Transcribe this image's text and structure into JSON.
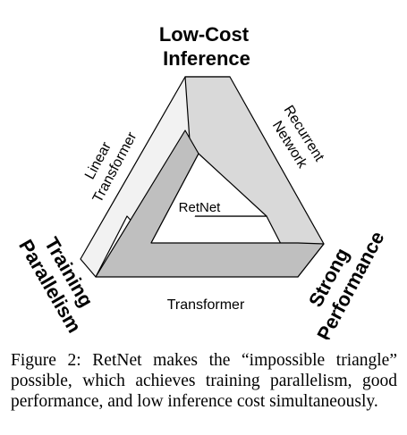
{
  "diagram": {
    "vertex_top": "Low-Cost\nInference",
    "vertex_left": "Training\nParallelism",
    "vertex_right": "Strong\nPerformance",
    "edge_left": "Linear\nTransformer",
    "edge_right": "Recurrent\nNetwork",
    "edge_bottom": "Transformer",
    "center": "RetNet",
    "colors": {
      "face_light": "#f2f2f2",
      "face_mid": "#d9d9d9",
      "face_dark": "#bfbfbf",
      "outline": "#000000"
    }
  },
  "caption": {
    "text": "Figure 2: RetNet makes the “impossible triangle” possible, which achieves training parallelism, good performance, and low inference cost simultaneously."
  }
}
